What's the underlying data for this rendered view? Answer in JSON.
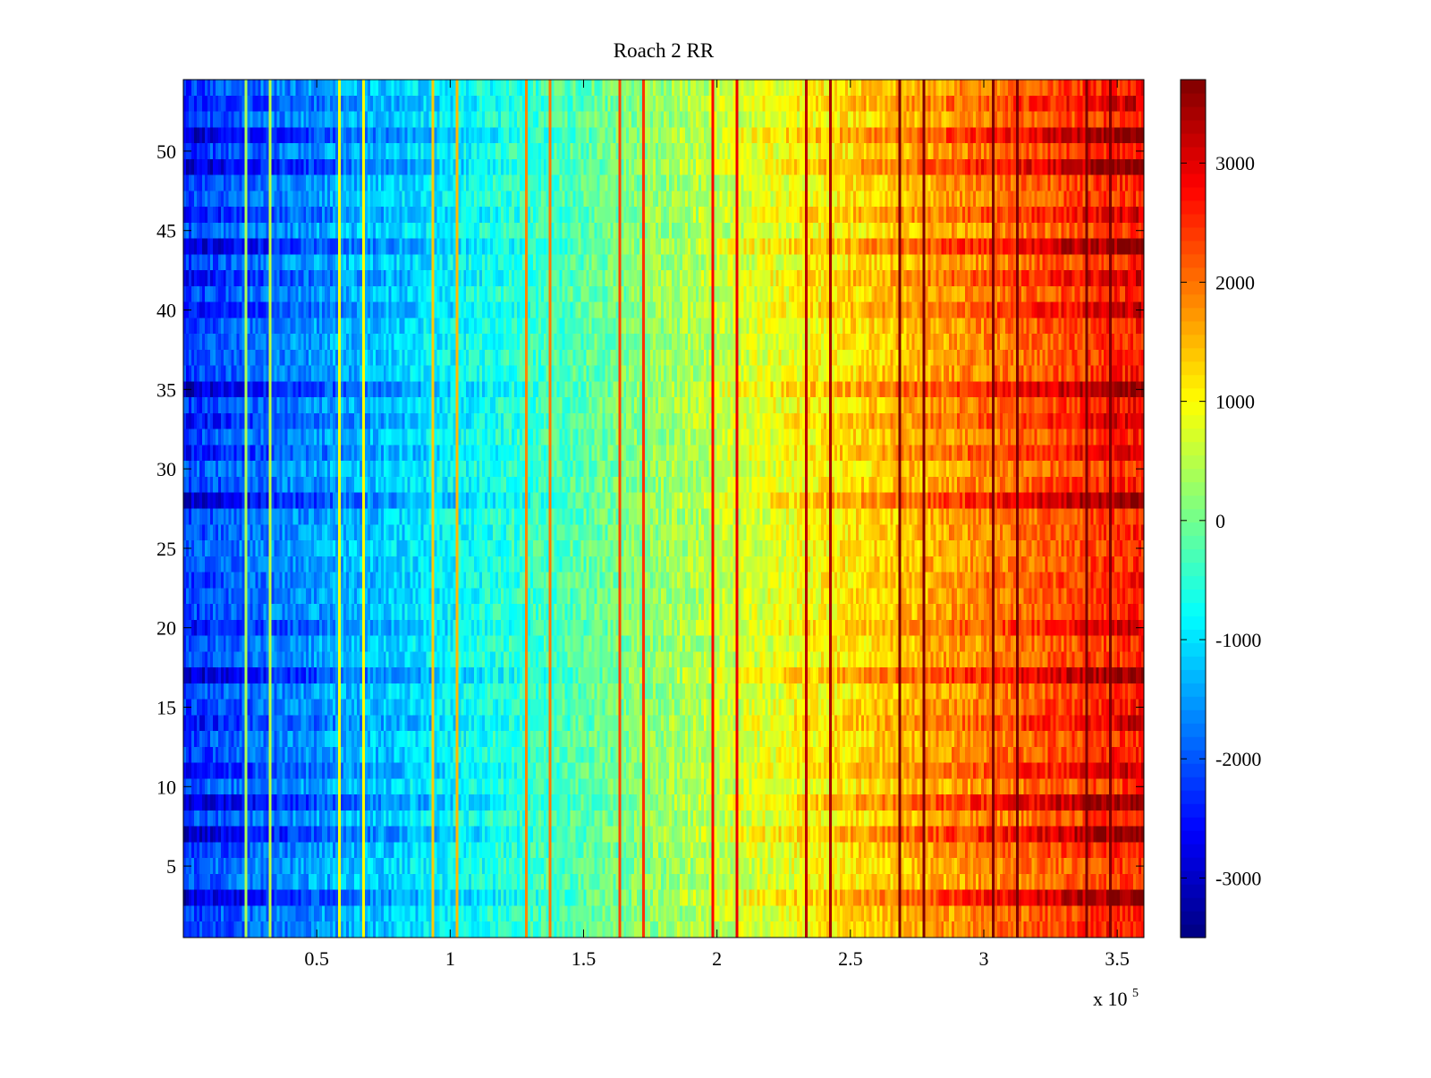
{
  "chart_data": {
    "type": "heatmap",
    "title": "Roach 2 RR",
    "xlabel": "",
    "ylabel": "",
    "x_multiplier": {
      "base": "x 10",
      "exponent": "5"
    },
    "xlim": [
      0,
      360000
    ],
    "ylim": [
      0.5,
      54.5
    ],
    "x_ticks": [
      50000,
      100000,
      150000,
      200000,
      250000,
      300000,
      350000
    ],
    "x_tick_labels": [
      "0.5",
      "1",
      "1.5",
      "2",
      "2.5",
      "3",
      "3.5"
    ],
    "y_ticks": [
      5,
      10,
      15,
      20,
      25,
      30,
      35,
      40,
      45,
      50
    ],
    "y_tick_labels": [
      "5",
      "10",
      "15",
      "20",
      "25",
      "30",
      "35",
      "40",
      "45",
      "50"
    ],
    "colorbar": {
      "colormap": "jet",
      "clim": [
        -3500,
        3700
      ],
      "ticks": [
        -3000,
        -2000,
        -1000,
        0,
        1000,
        2000,
        3000
      ],
      "tick_labels": [
        "-3000",
        "-2000",
        "-1000",
        "0",
        "1000",
        "2000",
        "3000"
      ]
    },
    "n_rows": 54,
    "n_cols": 360,
    "trend": {
      "value_at_x_min": -2200,
      "value_at_x_max": 2700
    },
    "strong_rows": [
      3,
      7,
      9,
      17,
      28,
      35,
      44,
      49,
      51
    ],
    "medium_rows": [
      11,
      14,
      20,
      31,
      33,
      40,
      42,
      46,
      53
    ],
    "row_offsets_note": "rows listed in strong_rows amplify the left-right gradient (darker blue on left, darker red on right)",
    "vertical_stripes_x": [
      23000,
      32000,
      58000,
      67000,
      93000,
      102000,
      128000,
      137000,
      163000,
      172000,
      198000,
      207000,
      233000,
      242000,
      268000,
      277000,
      303000,
      312000,
      338000,
      347000
    ],
    "stripe_value_offset": 2300
  }
}
